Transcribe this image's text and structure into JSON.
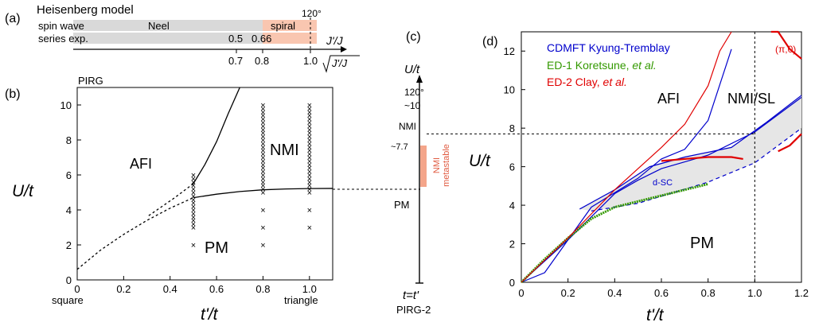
{
  "chart_data": [
    {
      "panel": "(a)",
      "type": "bar",
      "title": "Heisenberg model",
      "rows": [
        {
          "label": "spin wave",
          "segments": [
            {
              "name": "Neel",
              "from": 0.0,
              "to": 0.8,
              "color": "#d9d9d9"
            },
            {
              "name": "spiral",
              "from": 0.8,
              "to": 1.0,
              "color": "#f9c6b0"
            }
          ],
          "marker": {
            "label": "120°",
            "x": 1.0
          }
        },
        {
          "label": "series exp.",
          "segments": [
            {
              "name": "",
              "from": 0.0,
              "to": 0.8,
              "color": "#d9d9d9"
            },
            {
              "name": "",
              "from": 0.8,
              "to": 1.0,
              "color": "#f9c6b0"
            }
          ],
          "annotations": [
            "0.5",
            "0.66"
          ]
        }
      ],
      "axis_label_top": "J'/J",
      "axis_label_bottom": "√J'/J",
      "ticks": [
        {
          "value": 0.7,
          "label": "0.7"
        },
        {
          "value": 0.8,
          "label": "0.8"
        },
        {
          "value": 1.0,
          "label": "1.0"
        }
      ]
    },
    {
      "panel": "(b)",
      "type": "scatter",
      "title": "PIRG",
      "xlabel": "t'/t",
      "ylabel": "U/t",
      "xlim": [
        0,
        1.1
      ],
      "ylim": [
        0,
        11
      ],
      "xticks": [
        0,
        0.2,
        0.4,
        0.6,
        0.8,
        1.0
      ],
      "xtick_labels": [
        "0",
        "0.2",
        "0.4",
        "0.6",
        "0.8",
        "1.0"
      ],
      "yticks": [
        0,
        2,
        4,
        6,
        8,
        10
      ],
      "ytick_labels": [
        "0",
        "2",
        "4",
        "6",
        "8",
        "10"
      ],
      "x_end_labels": {
        "left": "square",
        "right": "triangle"
      },
      "regions": [
        "AFI",
        "NMI",
        "PM"
      ],
      "boundaries": [
        {
          "name": "AFI-PM dashed",
          "style": "dashed",
          "x": [
            0,
            0.1,
            0.2,
            0.3,
            0.4,
            0.5
          ],
          "y": [
            0.6,
            1.7,
            2.6,
            3.4,
            4.1,
            4.7
          ]
        },
        {
          "name": "AFI-PM solid",
          "style": "solid",
          "x": [
            0.5,
            0.6,
            0.7,
            0.8,
            0.9,
            1.0,
            1.1
          ],
          "y": [
            4.7,
            4.9,
            5.05,
            5.15,
            5.2,
            5.22,
            5.23
          ]
        },
        {
          "name": "AFI-NMI",
          "style": "solid",
          "x": [
            0.5,
            0.55,
            0.6,
            0.65,
            0.7
          ],
          "y": [
            5.5,
            6.6,
            7.9,
            9.5,
            11
          ]
        },
        {
          "name": "extension",
          "style": "dashed",
          "x": [
            0.5,
            0.42,
            0.3
          ],
          "y": [
            5.5,
            4.7,
            3.6
          ]
        }
      ],
      "points": [
        {
          "x": 0.5,
          "y": [
            2,
            3,
            3.2,
            3.4,
            3.6,
            3.8,
            4,
            4.2,
            4.4,
            4.6,
            4.8,
            5,
            5.2,
            5.4,
            5.6,
            5.8,
            6
          ]
        },
        {
          "x": 0.8,
          "y": [
            2,
            3,
            4,
            5,
            5.2,
            5.4,
            5.6,
            5.8,
            6,
            6.2,
            6.4,
            6.6,
            6.8,
            7,
            7.2,
            7.4,
            7.6,
            7.8,
            8,
            8.2,
            8.4,
            8.6,
            8.8,
            9,
            9.2,
            9.4,
            9.6,
            9.8,
            10
          ]
        },
        {
          "x": 1.0,
          "y": [
            3,
            4,
            5,
            5.2,
            5.4,
            5.6,
            5.8,
            6,
            6.2,
            6.4,
            6.6,
            6.8,
            7,
            7.2,
            7.4,
            7.6,
            7.8,
            8,
            8.2,
            8.4,
            8.6,
            8.8,
            9,
            9.2,
            9.4,
            9.6,
            9.8,
            10
          ]
        }
      ]
    },
    {
      "panel": "(c)",
      "type": "line",
      "title": "U/t",
      "bottom_label": "t=t'",
      "caption": "PIRG-2",
      "labels": [
        "120°",
        "~10",
        "NMI",
        "~7.7",
        "PM"
      ],
      "metastable": {
        "label": "NMI metastable",
        "from": 5.3,
        "to": 7.7,
        "color": "#f4a58a"
      }
    },
    {
      "panel": "(d)",
      "type": "line",
      "xlabel": "t'/t",
      "ylabel": "U/t",
      "xlim": [
        0,
        1.2
      ],
      "ylim": [
        0,
        13
      ],
      "xticks": [
        0,
        0.2,
        0.4,
        0.6,
        0.8,
        1.0,
        1.2
      ],
      "xtick_labels": [
        "0",
        "0.2",
        "0.4",
        "0.6",
        "0.8",
        "1.0",
        "1.2"
      ],
      "yticks": [
        0,
        2,
        4,
        6,
        8,
        10,
        12
      ],
      "ytick_labels": [
        "0",
        "2",
        "4",
        "6",
        "8",
        "10",
        "12"
      ],
      "regions": [
        "AFI",
        "NMI/SL",
        "PM",
        "d-SC",
        "(π,0)"
      ],
      "legend": [
        {
          "label": "CDMFT Kyung-Tremblay",
          "color": "#0000cc"
        },
        {
          "label": "ED-1 Koretsune, et al.",
          "color": "#339900"
        },
        {
          "label": "ED-2 Clay, et al.",
          "color": "#e00000"
        }
      ],
      "series": [
        {
          "name": "CDMFT boundary 1",
          "color": "#0000cc",
          "x": [
            0,
            0.1,
            0.3,
            0.5,
            0.6,
            0.7,
            0.8,
            0.9
          ],
          "y": [
            0,
            0.5,
            3.9,
            5.4,
            6.4,
            6.9,
            8.4,
            12.1
          ]
        },
        {
          "name": "CDMFT boundary 2",
          "color": "#0000cc",
          "x": [
            0,
            0.2,
            0.4,
            0.5,
            0.6,
            0.8,
            1.0,
            1.2
          ],
          "y": [
            0,
            2.2,
            4.6,
            5.3,
            5.9,
            6.6,
            7.8,
            9.6
          ]
        },
        {
          "name": "CDMFT SC dashed",
          "color": "#0000cc",
          "dashed": true,
          "x": [
            0.3,
            0.5,
            0.8,
            1.0,
            1.2
          ],
          "y": [
            3.7,
            4.1,
            5.2,
            6.2,
            8.0
          ]
        },
        {
          "name": "CDMFT boundary 3",
          "color": "#0000cc",
          "x": [
            0.25,
            0.4,
            0.55,
            0.7,
            0.9,
            1.05,
            1.2
          ],
          "y": [
            3.8,
            4.8,
            6.0,
            6.5,
            7.0,
            8.3,
            9.7
          ]
        },
        {
          "name": "ED-1 Koretsune",
          "color": "#339900",
          "x": [
            0,
            0.1,
            0.2,
            0.3,
            0.4,
            0.5,
            0.6,
            0.7,
            0.8
          ],
          "y": [
            0,
            1.2,
            2.3,
            3.3,
            3.9,
            4.2,
            4.5,
            4.8,
            5.1
          ]
        },
        {
          "name": "ED-2 Clay upper",
          "color": "#e00000",
          "x": [
            0,
            0.2,
            0.4,
            0.6,
            0.7,
            0.8,
            0.85,
            0.9
          ],
          "y": [
            0,
            2.3,
            4.8,
            7.0,
            8.2,
            10.2,
            12.0,
            13.3
          ]
        },
        {
          "name": "ED-2 Clay lower",
          "color": "#e00000",
          "x": [
            0.6,
            0.7,
            0.8,
            0.9,
            0.95
          ],
          "y": [
            6.3,
            6.4,
            6.5,
            6.5,
            6.4
          ]
        },
        {
          "name": "ED-2 Clay right",
          "color": "#e00000",
          "x": [
            1.1,
            1.15,
            1.2
          ],
          "y": [
            6.8,
            7.1,
            7.7
          ]
        },
        {
          "name": "ED-2 Clay top-right",
          "color": "#e00000",
          "x": [
            1.07,
            1.1,
            1.15,
            1.2
          ],
          "y": [
            14,
            13,
            12.1,
            11.6
          ]
        }
      ],
      "vline": {
        "x": 1.0
      },
      "hline": {
        "y": 7.7
      }
    }
  ],
  "labels": {
    "panel_a": "(a)",
    "panel_b": "(b)",
    "panel_c": "(c)",
    "panel_d": "(d)",
    "heisenberg_title": "Heisenberg model",
    "spin_wave": "spin wave",
    "series_exp": "series exp.",
    "neel": "Neel",
    "spiral": "spiral",
    "deg120": "120°",
    "v05": "0.5",
    "v066": "0.66",
    "jj": "J'/J",
    "t07": "0.7",
    "t08": "0.8",
    "t10": "1.0",
    "sqrt_jj": "J'/J",
    "pirg": "PIRG",
    "b_xlabel": "t'/t",
    "b_ylabel": "U/t",
    "square": "square",
    "triangle": "triangle",
    "afi": "AFI",
    "nmi": "NMI",
    "pm": "PM",
    "c_ut": "U/t",
    "c_120": "120°",
    "c_10": "~10",
    "c_nmi": "NMI",
    "c_77": "~7.7",
    "c_pm": "PM",
    "c_meta1": "NMI",
    "c_meta2": "metastable",
    "c_ttp": "t=t'",
    "c_pirg2": "PIRG-2",
    "d_afi": "AFI",
    "d_nmisl": "NMI/SL",
    "d_pm": "PM",
    "d_dsc": "d-SC",
    "d_pi0": "(π,0)",
    "d_ylabel": "U/t",
    "d_xlabel": "t'/t",
    "legend1": "CDMFT Kyung-Tremblay",
    "legend2a": "ED-1 Koretsune, ",
    "legend2b": "et al.",
    "legend3a": "ED-2 Clay, ",
    "legend3b": "et al."
  }
}
